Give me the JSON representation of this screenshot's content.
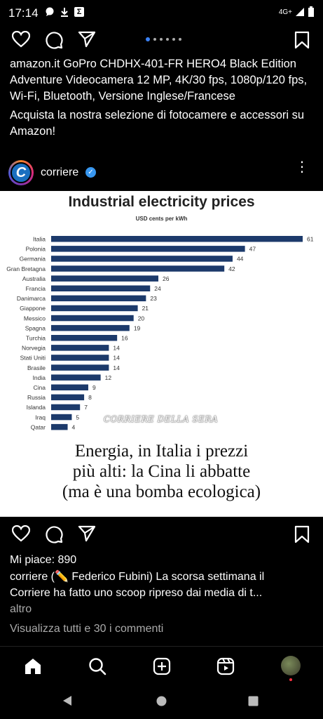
{
  "status": {
    "time": "17:14",
    "network": "4G+"
  },
  "top_caption": {
    "line1": "amazon.it GoPro CHDHX-401-FR HERO4 Black Edition Adventure Videocamera 12 MP, 4K/30 fps, 1080p/120 fps, Wi-Fi, Bluetooth, Versione Inglese/Francese",
    "line2": "Acquista la nostra selezione di fotocamere e accessori su Amazon!"
  },
  "post": {
    "username": "corriere",
    "avatar_letter": "C",
    "more": "⋮",
    "likes": "Mi piace: 890",
    "description": "corriere (✏️ Federico Fubini) La scorsa settimana il Corriere ha fatto uno scoop ripreso dai media di t...",
    "more_link": "altro",
    "comments_link": "Visualizza tutti e 30 i commenti",
    "image": {
      "watermark": "CORRIERE DELLA SERA",
      "headline_line1": "Energia, in Italia i prezzi",
      "headline_line2": "più alti: la Cina li abbatte",
      "headline_line3": "(ma è una bomba ecologica)"
    }
  },
  "chart_data": {
    "type": "bar",
    "orientation": "horizontal",
    "title": "Industrial electricity prices",
    "subtitle": "USD cents per kWh",
    "bar_color": "#1c3a6b",
    "categories": [
      "Italia",
      "Polonia",
      "Germania",
      "Gran Bretagna",
      "Australia",
      "Francia",
      "Danimarca",
      "Giappone",
      "Messico",
      "Spagna",
      "Turchia",
      "Norvegia",
      "Stati Uniti",
      "Brasile",
      "India",
      "Cina",
      "Russia",
      "Islanda",
      "Iraq",
      "Qatar"
    ],
    "values": [
      61,
      47,
      44,
      42,
      26,
      24,
      23,
      21,
      20,
      19,
      16,
      14,
      14,
      14,
      12,
      9,
      8,
      7,
      5,
      4
    ],
    "xlim": [
      0,
      61
    ]
  },
  "icons": {
    "like": "heart-icon",
    "comment": "comment-icon",
    "share": "send-icon",
    "save": "bookmark-icon",
    "home": "home-icon",
    "search": "search-icon",
    "create": "plus-square-icon",
    "reels": "reels-icon",
    "profile": "profile-avatar"
  }
}
